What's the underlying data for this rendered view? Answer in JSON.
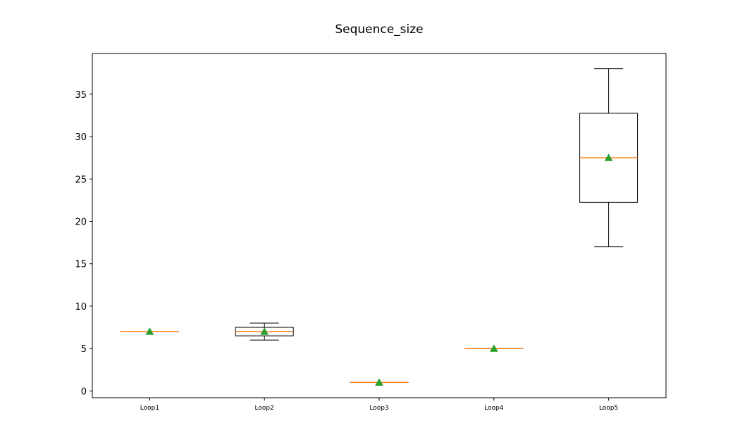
{
  "chart_data": {
    "type": "box",
    "title": "Sequence_size",
    "xlabel": "",
    "ylabel": "",
    "ylim": [
      -0.8,
      39.8
    ],
    "yticks": [
      0,
      5,
      10,
      15,
      20,
      25,
      30,
      35
    ],
    "grid": false,
    "categories": [
      "Loop1",
      "Loop2",
      "Loop3",
      "Loop4",
      "Loop5"
    ],
    "boxes": [
      {
        "category": "Loop1",
        "min": 7,
        "q1": 7,
        "median": 7,
        "q3": 7,
        "max": 7,
        "mean": 7
      },
      {
        "category": "Loop2",
        "min": 6,
        "q1": 6.5,
        "median": 7,
        "q3": 7.5,
        "max": 8,
        "mean": 7
      },
      {
        "category": "Loop3",
        "min": 1,
        "q1": 1,
        "median": 1,
        "q3": 1,
        "max": 1,
        "mean": 1
      },
      {
        "category": "Loop4",
        "min": 5,
        "q1": 5,
        "median": 5,
        "q3": 5,
        "max": 5,
        "mean": 5
      },
      {
        "category": "Loop5",
        "min": 17,
        "q1": 22.25,
        "median": 27.5,
        "q3": 32.75,
        "max": 38,
        "mean": 27.5
      }
    ],
    "colors": {
      "box": "#000000",
      "median": "#ff7f0e",
      "mean": "#2ca02c"
    }
  }
}
